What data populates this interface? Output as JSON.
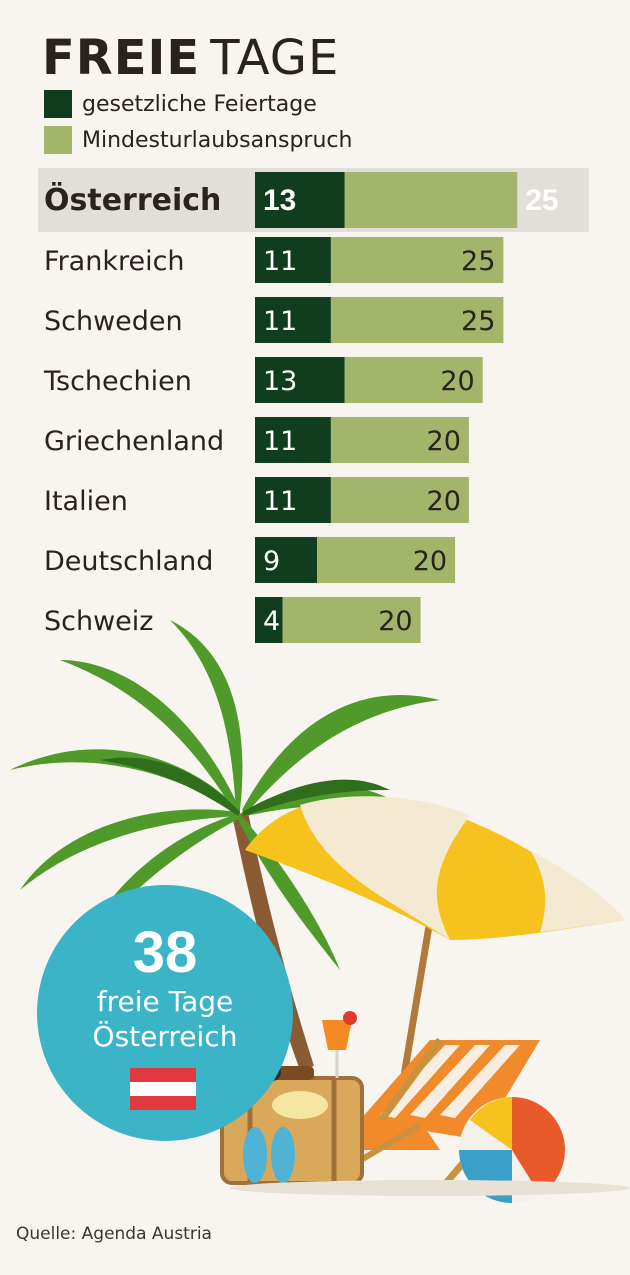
{
  "title_bold": "FREIE",
  "title_regular": "TAGE",
  "colors": {
    "feiertage": "#0f3d1e",
    "urlaub": "#a3b56a",
    "highlight_row": "#e2dfda",
    "badge": "#3cb4c8",
    "text": "#2a221c"
  },
  "chart_data": {
    "type": "bar",
    "orientation": "horizontal",
    "stacked": true,
    "categories": [
      "Österreich",
      "Frankreich",
      "Schweden",
      "Tschechien",
      "Griechenland",
      "Italien",
      "Deutschland",
      "Schweiz"
    ],
    "highlight": "Österreich",
    "series": [
      {
        "name": "gesetzliche Feiertage",
        "values": [
          13,
          11,
          11,
          13,
          11,
          11,
          9,
          4
        ]
      },
      {
        "name": "Mindesturlaubsanspruch",
        "values": [
          25,
          25,
          25,
          20,
          20,
          20,
          20,
          20
        ]
      }
    ]
  },
  "badge": {
    "number": "38",
    "line1": "freie Tage",
    "line2": "Österreich"
  },
  "source": "Quelle: Agenda Austria"
}
